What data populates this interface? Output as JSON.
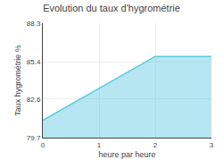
{
  "chart_data": {
    "type": "area",
    "title": "Evolution du taux d'hygrométrie",
    "x_label": "heure par heure",
    "y_label": "Taux hygrométrie %",
    "x": [
      0,
      2,
      3
    ],
    "values": [
      81.0,
      85.8,
      85.8
    ],
    "color": "#5bc8e0",
    "xlim": [
      0,
      3
    ],
    "xticks": [
      0,
      1,
      2,
      3
    ],
    "ylim": [
      79.7,
      88.3
    ],
    "yticks": [
      79.7,
      82.6,
      85.4,
      88.3
    ],
    "grid": true
  }
}
